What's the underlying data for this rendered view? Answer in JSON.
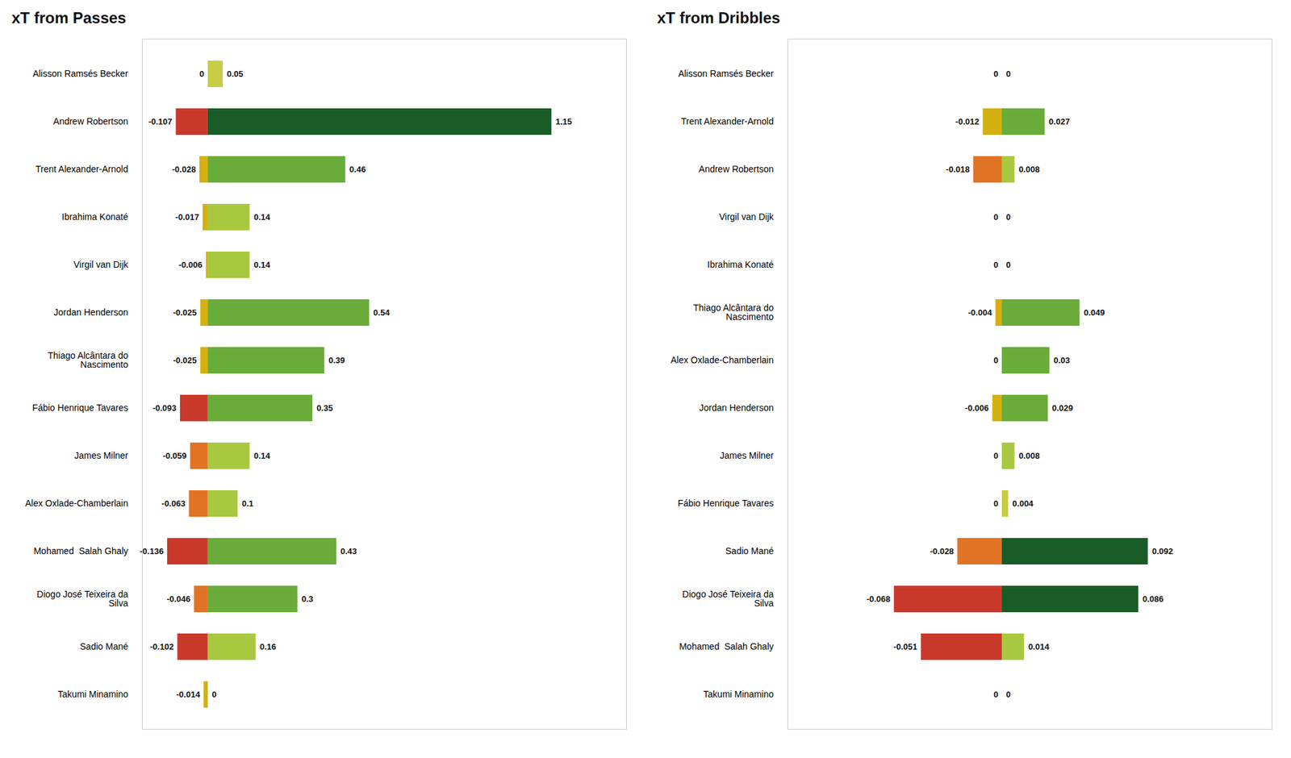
{
  "chart_data": [
    {
      "type": "bar",
      "orientation": "horizontal",
      "title": "xT from Passes",
      "categories": [
        "Alisson Ramsés Becker",
        "Andrew Robertson",
        "Trent Alexander-Arnold",
        "Ibrahima Konaté",
        "Virgil van Dijk",
        "Jordan Henderson",
        "Thiago Alcântara do\nNascimento",
        "Fábio Henrique Tavares",
        "James Milner",
        "Alex Oxlade-Chamberlain",
        "Mohamed  Salah Ghaly",
        "Diogo José Teixeira da\nSilva",
        "Sadio Mané",
        "Takumi Minamino"
      ],
      "series": [
        {
          "values": [
            0.0,
            -0.107,
            -0.028,
            -0.017,
            -0.006,
            -0.025,
            -0.025,
            -0.093,
            -0.059,
            -0.063,
            -0.136,
            -0.046,
            -0.102,
            -0.014
          ],
          "colors": [
            "#d4b010",
            "#c9392b",
            "#d4b010",
            "#d4b010",
            "#d4b010",
            "#d4b010",
            "#d4b010",
            "#c9392b",
            "#e07424",
            "#e07424",
            "#c9392b",
            "#e07424",
            "#c9392b",
            "#d4b010"
          ]
        },
        {
          "values": [
            0.05,
            1.15,
            0.46,
            0.14,
            0.14,
            0.54,
            0.39,
            0.35,
            0.14,
            0.1,
            0.43,
            0.3,
            0.16,
            0.0
          ],
          "colors": [
            "#c8cc44",
            "#1a5c28",
            "#6aac3a",
            "#a8c840",
            "#a8c840",
            "#6aac3a",
            "#6aac3a",
            "#6aac3a",
            "#a8c840",
            "#a8c840",
            "#6aac3a",
            "#6aac3a",
            "#a8c840",
            "#c8cc44"
          ]
        }
      ],
      "xlim": [
        -0.22,
        1.4
      ],
      "xticks": [],
      "tick_labels": "y",
      "data_labels": true,
      "grid": false
    },
    {
      "type": "bar",
      "orientation": "horizontal",
      "title": "xT from Dribbles",
      "categories": [
        "Alisson Ramsés Becker",
        "Trent Alexander-Arnold",
        "Andrew Robertson",
        "Virgil van Dijk",
        "Ibrahima Konaté",
        "Thiago Alcântara do\nNascimento",
        "Alex Oxlade-Chamberlain",
        "Jordan Henderson",
        "James Milner",
        "Fábio Henrique Tavares",
        "Sadio Mané",
        "Diogo José Teixeira da\nSilva",
        "Mohamed  Salah Ghaly",
        "Takumi Minamino"
      ],
      "series": [
        {
          "values": [
            0.0,
            -0.012,
            -0.018,
            0.0,
            0.0,
            -0.004,
            0.0,
            -0.006,
            0.0,
            0.0,
            -0.028,
            -0.068,
            -0.051,
            0.0
          ],
          "colors": [
            "#d4b010",
            "#d4b010",
            "#e07424",
            "#d4b010",
            "#d4b010",
            "#d4b010",
            "#d4b010",
            "#d4b010",
            "#d4b010",
            "#d4b010",
            "#e07424",
            "#c9392b",
            "#c9392b",
            "#d4b010"
          ]
        },
        {
          "values": [
            0.0,
            0.027,
            0.008,
            0.0,
            0.0,
            0.049,
            0.03,
            0.029,
            0.008,
            0.004,
            0.092,
            0.086,
            0.014,
            0.0
          ],
          "colors": [
            "#c8cc44",
            "#6aac3a",
            "#a8c840",
            "#c8cc44",
            "#c8cc44",
            "#6aac3a",
            "#6aac3a",
            "#6aac3a",
            "#a8c840",
            "#c8cc44",
            "#1a5c28",
            "#1a5c28",
            "#a8c840",
            "#c8cc44"
          ]
        }
      ],
      "xlim": [
        -0.135,
        0.17
      ],
      "xticks": [],
      "tick_labels": "y",
      "data_labels": true,
      "grid": false
    }
  ]
}
